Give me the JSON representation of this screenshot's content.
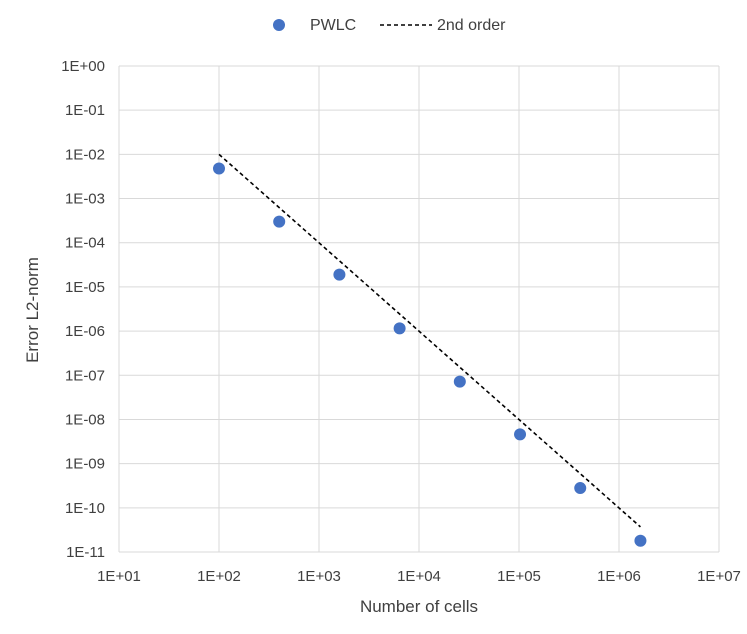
{
  "chart_data": {
    "type": "scatter",
    "title": "",
    "xlabel": "Number of cells",
    "ylabel": "Error L2-norm",
    "x_scale": "log",
    "y_scale": "log",
    "xlim": [
      10,
      10000000
    ],
    "ylim": [
      1e-11,
      1
    ],
    "grid": true,
    "legend": "top-center",
    "x_ticks": [
      "1E+01",
      "1E+02",
      "1E+03",
      "1E+04",
      "1E+05",
      "1E+06",
      "1E+07"
    ],
    "y_ticks": [
      "1E+00",
      "1E-01",
      "1E-02",
      "1E-03",
      "1E-04",
      "1E-05",
      "1E-06",
      "1E-07",
      "1E-08",
      "1E-09",
      "1E-10",
      "1E-11"
    ],
    "series": [
      {
        "name": "PWLC",
        "kind": "scatter",
        "color": "#4472C4",
        "points": [
          [
            100,
            0.0048
          ],
          [
            400,
            0.0003
          ],
          [
            1600,
            1.9e-05
          ],
          [
            6400,
            1.15e-06
          ],
          [
            25600,
            7.2e-08
          ],
          [
            102400,
            4.6e-09
          ],
          [
            409600,
            2.8e-10
          ],
          [
            1638400,
            1.8e-11
          ]
        ]
      },
      {
        "name": "2nd order",
        "kind": "line",
        "style": "dashed",
        "color": "#000000",
        "points": [
          [
            100,
            0.01
          ],
          [
            1638400,
            3.7e-11
          ]
        ]
      }
    ]
  }
}
